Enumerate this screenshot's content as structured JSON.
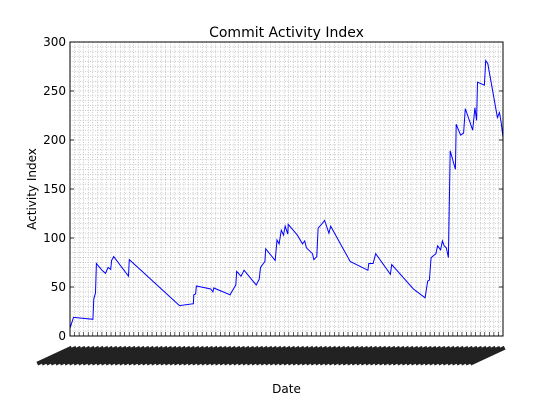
{
  "chart_data": {
    "type": "line",
    "title": "Commit Activity Index",
    "xlabel": "Date",
    "ylabel": "Activity Index",
    "ylim": [
      0,
      300
    ],
    "yticks": [
      0,
      50,
      100,
      150,
      200,
      250,
      300
    ],
    "ytick_labels": [
      "0",
      "50",
      "100",
      "150",
      "200",
      "250",
      "300"
    ],
    "grid": true,
    "line_color": "#0000ff",
    "xtick_count": 96,
    "xtick_labels_legible": false,
    "series": [
      {
        "values": [
          [
            0.0,
            8
          ],
          [
            0.008,
            19
          ],
          [
            0.053,
            17
          ],
          [
            0.055,
            38
          ],
          [
            0.059,
            44
          ],
          [
            0.061,
            74
          ],
          [
            0.074,
            67
          ],
          [
            0.082,
            64
          ],
          [
            0.088,
            70
          ],
          [
            0.094,
            68
          ],
          [
            0.096,
            77
          ],
          [
            0.101,
            81
          ],
          [
            0.135,
            61
          ],
          [
            0.137,
            78
          ],
          [
            0.253,
            31
          ],
          [
            0.285,
            33
          ],
          [
            0.286,
            42
          ],
          [
            0.29,
            43
          ],
          [
            0.292,
            51
          ],
          [
            0.325,
            48
          ],
          [
            0.33,
            45
          ],
          [
            0.332,
            49
          ],
          [
            0.37,
            42
          ],
          [
            0.372,
            44
          ],
          [
            0.383,
            52
          ],
          [
            0.385,
            66
          ],
          [
            0.395,
            61
          ],
          [
            0.402,
            67
          ],
          [
            0.43,
            52
          ],
          [
            0.437,
            58
          ],
          [
            0.44,
            70
          ],
          [
            0.45,
            76
          ],
          [
            0.452,
            89
          ],
          [
            0.474,
            77
          ],
          [
            0.478,
            98
          ],
          [
            0.483,
            94
          ],
          [
            0.488,
            108
          ],
          [
            0.493,
            103
          ],
          [
            0.497,
            112
          ],
          [
            0.503,
            104
          ],
          [
            0.504,
            114
          ],
          [
            0.525,
            103
          ],
          [
            0.537,
            94
          ],
          [
            0.542,
            97
          ],
          [
            0.546,
            90
          ],
          [
            0.56,
            84
          ],
          [
            0.563,
            78
          ],
          [
            0.57,
            81
          ],
          [
            0.573,
            110
          ],
          [
            0.583,
            115
          ],
          [
            0.588,
            118
          ],
          [
            0.598,
            105
          ],
          [
            0.602,
            112
          ],
          [
            0.647,
            76
          ],
          [
            0.688,
            67
          ],
          [
            0.69,
            74
          ],
          [
            0.7,
            74
          ],
          [
            0.706,
            84
          ],
          [
            0.74,
            63
          ],
          [
            0.743,
            73
          ],
          [
            0.793,
            48
          ],
          [
            0.82,
            39
          ],
          [
            0.826,
            56
          ],
          [
            0.83,
            57
          ],
          [
            0.834,
            80
          ],
          [
            0.845,
            84
          ],
          [
            0.849,
            92
          ],
          [
            0.856,
            88
          ],
          [
            0.86,
            97
          ],
          [
            0.864,
            92
          ],
          [
            0.869,
            90
          ],
          [
            0.872,
            84
          ],
          [
            0.874,
            80
          ],
          [
            0.878,
            189
          ],
          [
            0.89,
            170
          ],
          [
            0.892,
            216
          ],
          [
            0.902,
            205
          ],
          [
            0.909,
            207
          ],
          [
            0.913,
            232
          ],
          [
            0.93,
            210
          ],
          [
            0.935,
            233
          ],
          [
            0.939,
            220
          ],
          [
            0.941,
            259
          ],
          [
            0.957,
            256
          ],
          [
            0.96,
            281
          ],
          [
            0.965,
            278
          ],
          [
            0.987,
            223
          ],
          [
            0.992,
            228
          ],
          [
            0.996,
            217
          ],
          [
            1.0,
            202
          ]
        ]
      }
    ]
  }
}
